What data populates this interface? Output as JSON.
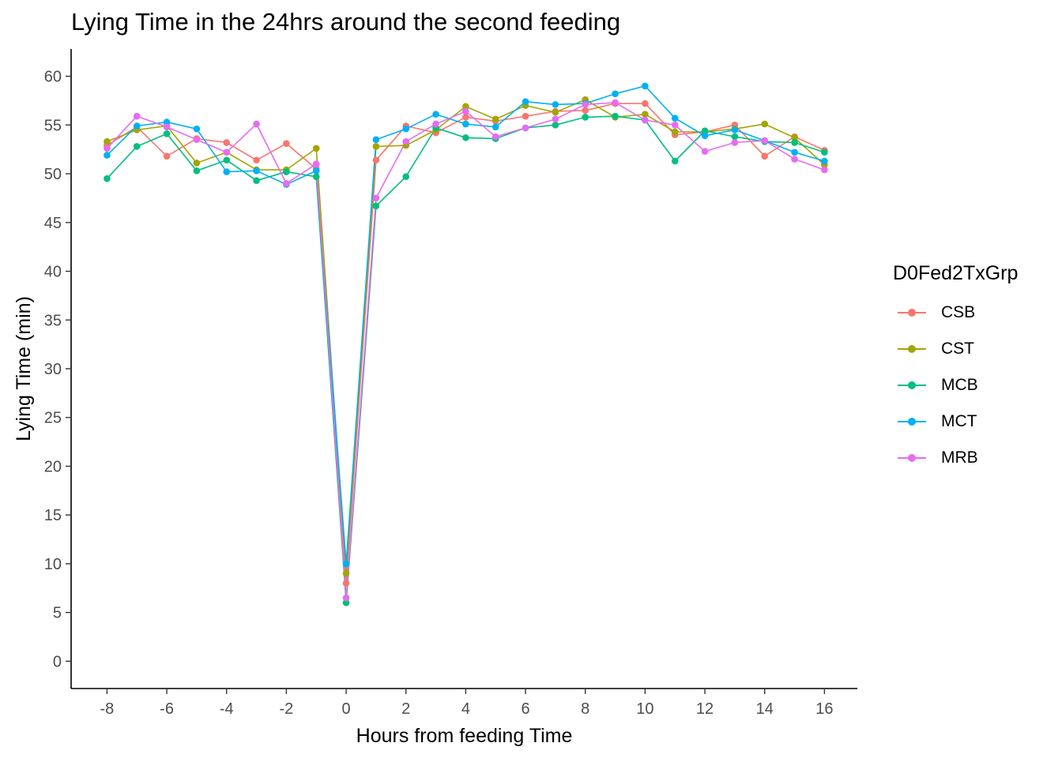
{
  "chart_data": {
    "type": "line",
    "title": "Lying Time in the 24hrs around the second feeding",
    "xlabel": "Hours from feeding Time",
    "ylabel": "Lying Time (min)",
    "xlim": [
      -9.2,
      17.1
    ],
    "ylim": [
      -2.8,
      62.8
    ],
    "xticks": [
      -8,
      -6,
      -4,
      -2,
      0,
      2,
      4,
      6,
      8,
      10,
      12,
      14,
      16
    ],
    "xtick_labels": [
      "-8",
      "-6",
      "-4",
      "-2",
      "0",
      "2",
      "4",
      "6",
      "8",
      "10",
      "12",
      "14",
      "16"
    ],
    "yticks": [
      0,
      5,
      10,
      15,
      20,
      25,
      30,
      35,
      40,
      45,
      50,
      55,
      60
    ],
    "ytick_labels": [
      "0",
      "5",
      "10",
      "15",
      "20",
      "25",
      "30",
      "35",
      "40",
      "45",
      "50",
      "55",
      "60"
    ],
    "grid": false,
    "legend": {
      "title": "D0Fed2TxGrp",
      "position": "right"
    },
    "x": [
      -8,
      -7,
      -6,
      -5,
      -4,
      -3,
      -2,
      -1,
      0,
      1,
      2,
      3,
      4,
      5,
      6,
      7,
      8,
      9,
      10,
      11,
      12,
      13,
      14,
      15,
      16
    ],
    "series": [
      {
        "name": "CSB",
        "color": "#F8766D",
        "values": [
          52.9,
          54.8,
          51.8,
          53.6,
          53.2,
          51.4,
          53.1,
          50.5,
          8.0,
          51.4,
          54.9,
          54.2,
          55.8,
          55.4,
          55.9,
          56.4,
          56.5,
          57.2,
          57.2,
          54.0,
          54.3,
          55.0,
          51.8,
          53.8,
          52.4
        ]
      },
      {
        "name": "CST",
        "color": "#A3A500",
        "values": [
          53.3,
          54.5,
          54.9,
          51.1,
          52.2,
          50.4,
          50.4,
          52.6,
          9.0,
          52.8,
          52.9,
          54.5,
          56.9,
          55.6,
          57.0,
          56.3,
          57.6,
          55.8,
          56.1,
          54.3,
          54.3,
          54.6,
          55.1,
          53.7,
          50.9
        ]
      },
      {
        "name": "MCB",
        "color": "#00BF7D",
        "values": [
          49.5,
          52.8,
          54.1,
          50.3,
          51.4,
          49.3,
          50.2,
          49.7,
          6.0,
          46.7,
          49.7,
          54.7,
          53.7,
          53.6,
          54.7,
          55.0,
          55.8,
          55.9,
          55.5,
          51.3,
          54.4,
          53.8,
          53.3,
          53.2,
          52.2
        ]
      },
      {
        "name": "MCT",
        "color": "#00B0F6",
        "values": [
          51.9,
          54.9,
          55.3,
          54.6,
          50.2,
          50.3,
          48.9,
          50.3,
          10.0,
          53.5,
          54.6,
          56.1,
          55.1,
          54.8,
          57.4,
          57.1,
          57.2,
          58.2,
          59.0,
          55.7,
          53.9,
          54.5,
          53.4,
          52.2,
          51.3
        ]
      },
      {
        "name": "MRB",
        "color": "#E76BF3",
        "values": [
          52.6,
          55.9,
          54.8,
          53.5,
          52.2,
          55.1,
          49.0,
          51.0,
          6.5,
          47.5,
          53.3,
          55.1,
          56.4,
          53.8,
          54.7,
          55.6,
          57.1,
          57.3,
          55.5,
          55.0,
          52.3,
          53.2,
          53.4,
          51.5,
          50.4
        ]
      }
    ]
  }
}
